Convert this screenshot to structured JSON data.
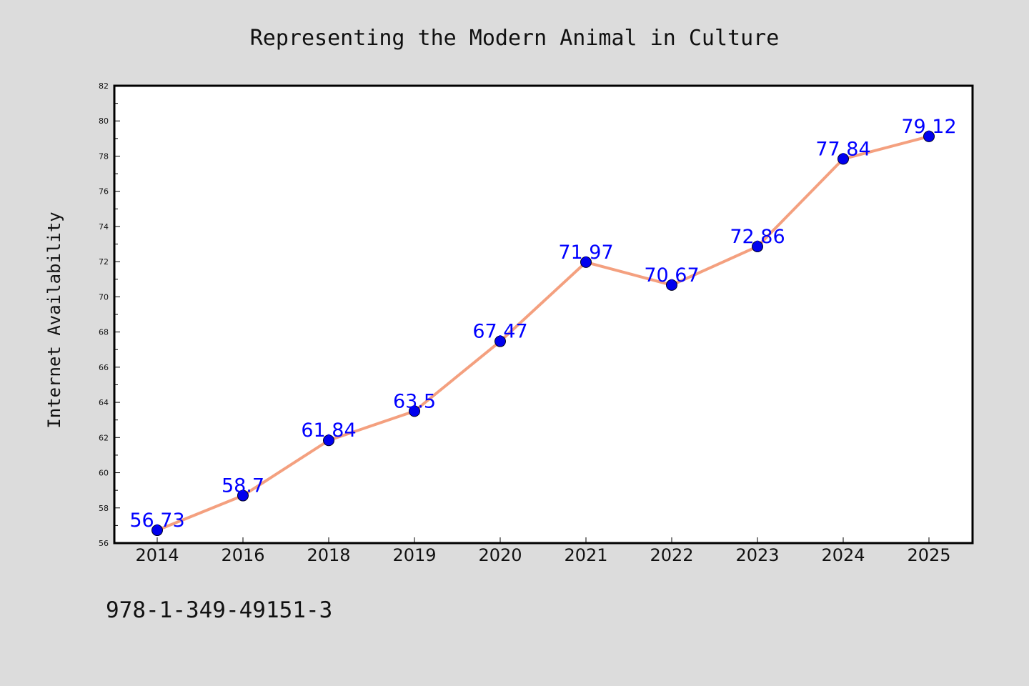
{
  "chart_data": {
    "type": "line",
    "title": "Representing the Modern Animal in Culture",
    "xlabel": "",
    "ylabel": "Internet Availability",
    "categories": [
      "2014",
      "2016",
      "2018",
      "2019",
      "2020",
      "2021",
      "2022",
      "2023",
      "2024",
      "2025"
    ],
    "values": [
      56.73,
      58.7,
      61.84,
      63.5,
      67.47,
      71.97,
      70.67,
      72.86,
      77.84,
      79.12
    ],
    "data_labels": [
      "56.73",
      "58.7",
      "61.84",
      "63.5",
      "67.47",
      "71.97",
      "70.67",
      "72.86",
      "77.84",
      "79.12"
    ],
    "ylim": [
      56,
      82
    ],
    "yticks": [
      "56",
      "58",
      "60",
      "62",
      "64",
      "66",
      "68",
      "70",
      "72",
      "74",
      "76",
      "78",
      "80",
      "82"
    ],
    "grid": false,
    "legend": "none",
    "colors": {
      "line": "#f4a07f",
      "marker": "#0000ee",
      "label": "#0000ff",
      "background": "#dcdcdc",
      "plot_background": "#ffffff"
    }
  },
  "footnote": "978-1-349-49151-3"
}
